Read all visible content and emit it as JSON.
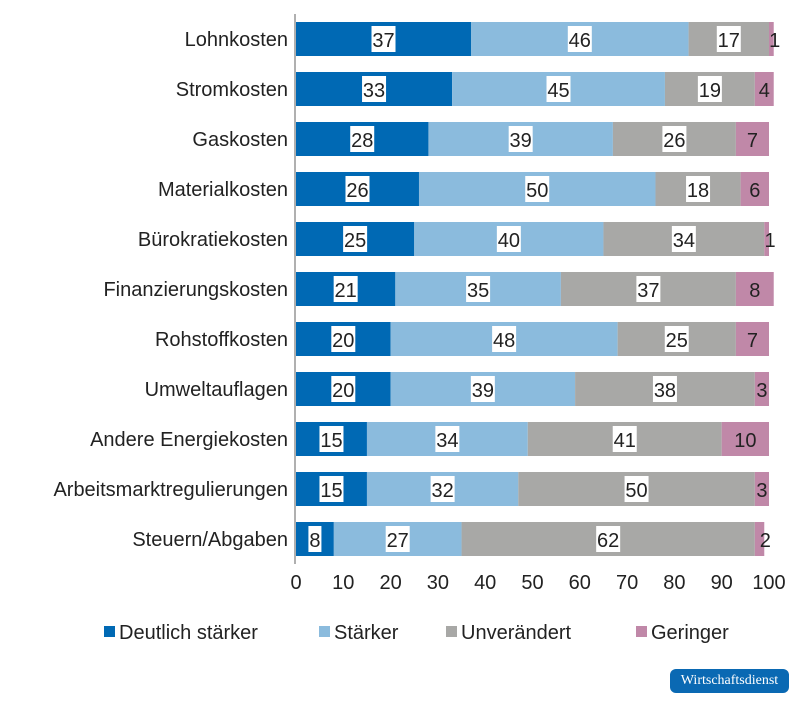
{
  "chart_data": {
    "type": "bar",
    "orientation": "horizontal",
    "stacked": true,
    "categories": [
      "Lohnkosten",
      "Stromkosten",
      "Gaskosten",
      "Materialkosten",
      "Bürokratiekosten",
      "Finanzierungskosten",
      "Rohstoffkosten",
      "Umweltauflagen",
      "Andere Energiekosten",
      "Arbeitsmarktregulierungen",
      "Steuern/Abgaben"
    ],
    "series": [
      {
        "name": "Deutlich stärker",
        "color": "#0069b4",
        "values": [
          37,
          33,
          28,
          26,
          25,
          21,
          20,
          20,
          15,
          15,
          8
        ]
      },
      {
        "name": "Stärker",
        "color": "#8bbbdd",
        "values": [
          46,
          45,
          39,
          50,
          40,
          35,
          48,
          39,
          34,
          32,
          27
        ]
      },
      {
        "name": "Unverändert",
        "color": "#a8a8a6",
        "values": [
          17,
          19,
          26,
          18,
          34,
          37,
          25,
          38,
          41,
          50,
          62
        ]
      },
      {
        "name": "Geringer",
        "color": "#c088a8",
        "values": [
          1,
          4,
          7,
          6,
          1,
          8,
          7,
          3,
          10,
          3,
          2
        ]
      }
    ],
    "xlim": [
      0,
      100
    ],
    "xticks": [
      "0",
      "10",
      "20",
      "30",
      "40",
      "50",
      "60",
      "70",
      "80",
      "90",
      "100"
    ],
    "legend": "bottom",
    "grid": false
  },
  "branding": {
    "label": "Wirtschaftsdienst"
  }
}
